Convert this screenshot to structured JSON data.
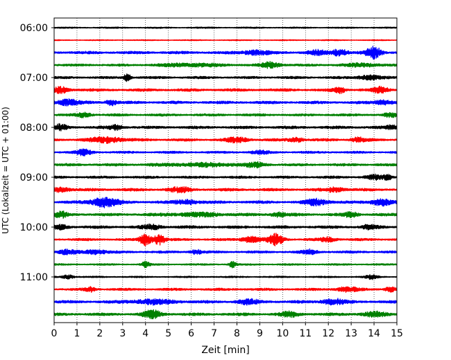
{
  "chart_data": {
    "type": "line",
    "title": "",
    "xlabel": "Zeit  [min]",
    "ylabel": "UTC (Lokalzeit = UTC + 01:00)",
    "xlim": [
      0,
      15
    ],
    "x_ticks": [
      0,
      1,
      2,
      3,
      4,
      5,
      6,
      7,
      8,
      9,
      10,
      11,
      12,
      13,
      14,
      15
    ],
    "x_grid": "dotted vertical at each minute",
    "y_ticks": [
      "06:00",
      "07:00",
      "08:00",
      "09:00",
      "10:00",
      "11:00"
    ],
    "trace_colors": [
      "#000000",
      "#ff0000",
      "#0000ff",
      "#008000"
    ],
    "traces": [
      {
        "start": "06:00",
        "color": "#000000",
        "level": 0.8,
        "bursts": []
      },
      {
        "start": "06:15",
        "color": "#ff0000",
        "level": 0.6,
        "bursts": []
      },
      {
        "start": "06:30",
        "color": "#0000ff",
        "level": 1.6,
        "bursts": [
          [
            8.8,
            0.7,
            3
          ],
          [
            11.5,
            0.5,
            3
          ],
          [
            12.5,
            0.4,
            5
          ],
          [
            14.0,
            0.4,
            8
          ]
        ]
      },
      {
        "start": "06:45",
        "color": "#008000",
        "level": 1.4,
        "bursts": [
          [
            6.0,
            1.5,
            2
          ],
          [
            9.5,
            0.5,
            4
          ],
          [
            13.5,
            1.0,
            2
          ]
        ]
      },
      {
        "start": "07:00",
        "color": "#000000",
        "level": 1.4,
        "bursts": [
          [
            3.2,
            0.2,
            5
          ],
          [
            13.8,
            0.6,
            3
          ]
        ]
      },
      {
        "start": "07:15",
        "color": "#ff0000",
        "level": 1.6,
        "bursts": [
          [
            0.3,
            0.4,
            4
          ],
          [
            12.5,
            0.3,
            4
          ],
          [
            14.3,
            0.4,
            4
          ]
        ]
      },
      {
        "start": "07:30",
        "color": "#0000ff",
        "level": 1.6,
        "bursts": [
          [
            0.6,
            0.6,
            4
          ],
          [
            2.5,
            0.3,
            4
          ],
          [
            14.4,
            0.5,
            3
          ]
        ]
      },
      {
        "start": "07:45",
        "color": "#008000",
        "level": 1.4,
        "bursts": [
          [
            1.3,
            0.4,
            3
          ],
          [
            14.7,
            0.3,
            3
          ]
        ]
      },
      {
        "start": "08:00",
        "color": "#000000",
        "level": 1.6,
        "bursts": [
          [
            0.3,
            0.3,
            4
          ],
          [
            2.7,
            0.4,
            3
          ],
          [
            14.8,
            0.3,
            3
          ]
        ]
      },
      {
        "start": "08:15",
        "color": "#ff0000",
        "level": 1.5,
        "bursts": [
          [
            2.3,
            0.8,
            4
          ],
          [
            8.0,
            0.6,
            3
          ],
          [
            10.6,
            0.4,
            3
          ],
          [
            13.3,
            0.4,
            3
          ]
        ]
      },
      {
        "start": "08:30",
        "color": "#0000ff",
        "level": 1.3,
        "bursts": [
          [
            1.3,
            0.4,
            4
          ],
          [
            9.0,
            0.5,
            2
          ]
        ]
      },
      {
        "start": "08:45",
        "color": "#008000",
        "level": 1.5,
        "bursts": [
          [
            6.5,
            2.0,
            2
          ],
          [
            8.8,
            0.5,
            3
          ]
        ]
      },
      {
        "start": "09:00",
        "color": "#000000",
        "level": 1.4,
        "bursts": [
          [
            14.0,
            0.5,
            3
          ],
          [
            14.6,
            0.2,
            4
          ]
        ]
      },
      {
        "start": "09:15",
        "color": "#ff0000",
        "level": 1.6,
        "bursts": [
          [
            0.3,
            0.5,
            3
          ],
          [
            5.5,
            0.6,
            3
          ],
          [
            12.3,
            0.5,
            3
          ]
        ]
      },
      {
        "start": "09:30",
        "color": "#0000ff",
        "level": 1.6,
        "bursts": [
          [
            2.2,
            0.7,
            7
          ],
          [
            5.8,
            0.6,
            3
          ],
          [
            11.5,
            0.6,
            4
          ],
          [
            14.3,
            0.5,
            5
          ]
        ]
      },
      {
        "start": "09:45",
        "color": "#008000",
        "level": 1.6,
        "bursts": [
          [
            0.3,
            0.3,
            4
          ],
          [
            6.3,
            1.5,
            2
          ],
          [
            9.8,
            0.4,
            3
          ],
          [
            13.0,
            0.4,
            3
          ]
        ]
      },
      {
        "start": "10:00",
        "color": "#000000",
        "level": 1.6,
        "bursts": [
          [
            0.3,
            0.4,
            3
          ],
          [
            4.3,
            0.5,
            3
          ],
          [
            13.8,
            0.4,
            3
          ]
        ]
      },
      {
        "start": "10:15",
        "color": "#ff0000",
        "level": 1.4,
        "bursts": [
          [
            4.0,
            0.3,
            8
          ],
          [
            4.6,
            0.3,
            7
          ],
          [
            8.6,
            0.5,
            4
          ],
          [
            9.7,
            0.4,
            8
          ],
          [
            12.0,
            0.4,
            3
          ]
        ]
      },
      {
        "start": "10:30",
        "color": "#0000ff",
        "level": 1.4,
        "bursts": [
          [
            0.6,
            0.5,
            3
          ],
          [
            1.8,
            0.6,
            3
          ],
          [
            6.2,
            0.3,
            3
          ],
          [
            11.2,
            0.4,
            3
          ]
        ]
      },
      {
        "start": "10:45",
        "color": "#008000",
        "level": 1.0,
        "bursts": [
          [
            4.0,
            0.2,
            4
          ],
          [
            7.8,
            0.2,
            4
          ]
        ]
      },
      {
        "start": "11:00",
        "color": "#000000",
        "level": 0.9,
        "bursts": [
          [
            0.6,
            0.3,
            3
          ],
          [
            13.9,
            0.3,
            3
          ]
        ]
      },
      {
        "start": "11:15",
        "color": "#ff0000",
        "level": 1.4,
        "bursts": [
          [
            1.6,
            0.3,
            3
          ],
          [
            12.8,
            0.6,
            3
          ],
          [
            14.7,
            0.3,
            3
          ]
        ]
      },
      {
        "start": "11:30",
        "color": "#0000ff",
        "level": 1.6,
        "bursts": [
          [
            4.3,
            1.2,
            3
          ],
          [
            8.5,
            0.6,
            3
          ],
          [
            12.2,
            0.6,
            4
          ]
        ]
      },
      {
        "start": "11:45",
        "color": "#008000",
        "level": 1.6,
        "bursts": [
          [
            4.3,
            0.5,
            5
          ],
          [
            10.3,
            0.5,
            3
          ],
          [
            14.0,
            0.6,
            3
          ]
        ]
      }
    ]
  }
}
